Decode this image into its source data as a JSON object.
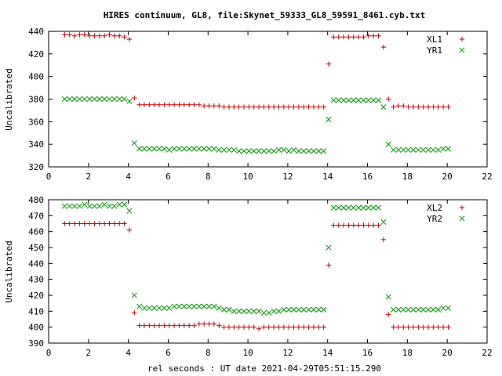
{
  "title": "HIRES continuum, GL8, file:Skynet_59333_GL8_59591_8461.cyb.txt",
  "xlabel": "rel seconds : UT date 2021-04-29T05:51:15.290",
  "colors": {
    "s1": "#cc0000",
    "s2": "#009900",
    "frame": "#000000"
  },
  "chart_data": [
    {
      "type": "scatter",
      "ylabel": "Uncalibrated",
      "xlim": [
        0,
        22
      ],
      "ylim": [
        320,
        440
      ],
      "x_ticks": [
        0,
        2,
        4,
        6,
        8,
        10,
        12,
        14,
        16,
        18,
        20,
        22
      ],
      "y_ticks": [
        320,
        340,
        360,
        380,
        400,
        420,
        440
      ],
      "legend_position": "top-right",
      "series": [
        {
          "name": "XL1",
          "marker": "plus",
          "color": "#cc0000",
          "x": [
            0.8,
            1.05,
            1.3,
            1.55,
            1.8,
            2.05,
            2.3,
            2.55,
            2.8,
            3.05,
            3.3,
            3.55,
            3.8,
            4.05,
            4.3,
            4.55,
            4.8,
            5.05,
            5.3,
            5.55,
            5.8,
            6.05,
            6.3,
            6.55,
            6.8,
            7.05,
            7.3,
            7.55,
            7.8,
            8.05,
            8.3,
            8.55,
            8.8,
            9.05,
            9.3,
            9.55,
            9.8,
            10.05,
            10.3,
            10.55,
            10.8,
            11.05,
            11.3,
            11.55,
            11.8,
            12.05,
            12.3,
            12.55,
            12.8,
            13.05,
            13.3,
            13.55,
            13.8,
            14.05,
            14.3,
            14.55,
            14.8,
            15.05,
            15.3,
            15.55,
            15.8,
            16.05,
            16.3,
            16.55,
            16.8,
            17.05,
            17.3,
            17.55,
            17.8,
            18.05,
            18.3,
            18.55,
            18.8,
            19.05,
            19.3,
            19.55,
            19.8,
            20.05
          ],
          "y": [
            437,
            437,
            436,
            437,
            437,
            436,
            436,
            436,
            436,
            437,
            436,
            436,
            435,
            433,
            381,
            375,
            375,
            375,
            375,
            375,
            375,
            375,
            375,
            375,
            375,
            375,
            375,
            375,
            374,
            374,
            374,
            374,
            373,
            373,
            373,
            373,
            373,
            373,
            373,
            373,
            373,
            373,
            373,
            373,
            373,
            373,
            373,
            373,
            373,
            373,
            373,
            373,
            373,
            411,
            435,
            435,
            435,
            435,
            435,
            435,
            435,
            436,
            436,
            436,
            426,
            380,
            373,
            374,
            374,
            373,
            373,
            373,
            373,
            373,
            373,
            373,
            373,
            373
          ]
        },
        {
          "name": "YR1",
          "marker": "cross",
          "color": "#009900",
          "x": [
            0.8,
            1.05,
            1.3,
            1.55,
            1.8,
            2.05,
            2.3,
            2.55,
            2.8,
            3.05,
            3.3,
            3.55,
            3.8,
            4.05,
            4.3,
            4.55,
            4.8,
            5.05,
            5.3,
            5.55,
            5.8,
            6.05,
            6.3,
            6.55,
            6.8,
            7.05,
            7.3,
            7.55,
            7.8,
            8.05,
            8.3,
            8.55,
            8.8,
            9.05,
            9.3,
            9.55,
            9.8,
            10.05,
            10.3,
            10.55,
            10.8,
            11.05,
            11.3,
            11.55,
            11.8,
            12.05,
            12.3,
            12.55,
            12.8,
            13.05,
            13.3,
            13.55,
            13.8,
            14.05,
            14.3,
            14.55,
            14.8,
            15.05,
            15.3,
            15.55,
            15.8,
            16.05,
            16.3,
            16.55,
            16.8,
            17.05,
            17.3,
            17.55,
            17.8,
            18.05,
            18.3,
            18.55,
            18.8,
            19.05,
            19.3,
            19.55,
            19.8,
            20.05
          ],
          "y": [
            380,
            380,
            380,
            380,
            380,
            380,
            380,
            380,
            380,
            380,
            380,
            380,
            380,
            378,
            341,
            336,
            336,
            336,
            336,
            336,
            336,
            335,
            336,
            336,
            336,
            336,
            336,
            336,
            336,
            336,
            336,
            335,
            335,
            335,
            335,
            334,
            334,
            334,
            334,
            334,
            334,
            334,
            334,
            335,
            335,
            334,
            335,
            334,
            334,
            334,
            334,
            334,
            334,
            362,
            379,
            379,
            379,
            379,
            379,
            379,
            379,
            379,
            379,
            379,
            373,
            340,
            335,
            335,
            335,
            335,
            335,
            335,
            335,
            335,
            335,
            335,
            336,
            336
          ]
        }
      ]
    },
    {
      "type": "scatter",
      "ylabel": "Uncalibrated",
      "xlim": [
        0,
        22
      ],
      "ylim": [
        390,
        480
      ],
      "x_ticks": [
        0,
        2,
        4,
        6,
        8,
        10,
        12,
        14,
        16,
        18,
        20,
        22
      ],
      "y_ticks": [
        390,
        400,
        410,
        420,
        430,
        440,
        450,
        460,
        470,
        480
      ],
      "legend_position": "top-right",
      "series": [
        {
          "name": "XL2",
          "marker": "plus",
          "color": "#cc0000",
          "x": [
            0.8,
            1.05,
            1.3,
            1.55,
            1.8,
            2.05,
            2.3,
            2.55,
            2.8,
            3.05,
            3.3,
            3.55,
            3.8,
            4.05,
            4.3,
            4.55,
            4.8,
            5.05,
            5.3,
            5.55,
            5.8,
            6.05,
            6.3,
            6.55,
            6.8,
            7.05,
            7.3,
            7.55,
            7.8,
            8.05,
            8.3,
            8.55,
            8.8,
            9.05,
            9.3,
            9.55,
            9.8,
            10.05,
            10.3,
            10.55,
            10.8,
            11.05,
            11.3,
            11.55,
            11.8,
            12.05,
            12.3,
            12.55,
            12.8,
            13.05,
            13.3,
            13.55,
            13.8,
            14.05,
            14.3,
            14.55,
            14.8,
            15.05,
            15.3,
            15.55,
            15.8,
            16.05,
            16.3,
            16.55,
            16.8,
            17.05,
            17.3,
            17.55,
            17.8,
            18.05,
            18.3,
            18.55,
            18.8,
            19.05,
            19.3,
            19.55,
            19.8,
            20.05
          ],
          "y": [
            465,
            465,
            465,
            465,
            465,
            465,
            465,
            465,
            465,
            465,
            465,
            465,
            465,
            461,
            409,
            401,
            401,
            401,
            401,
            401,
            401,
            401,
            401,
            401,
            401,
            401,
            401,
            402,
            402,
            402,
            402,
            401,
            400,
            400,
            400,
            400,
            400,
            400,
            400,
            399,
            400,
            400,
            400,
            400,
            400,
            400,
            400,
            400,
            400,
            400,
            400,
            400,
            400,
            439,
            464,
            464,
            464,
            464,
            464,
            464,
            464,
            464,
            464,
            464,
            455,
            408,
            400,
            400,
            400,
            400,
            400,
            400,
            400,
            400,
            400,
            400,
            400,
            400
          ]
        },
        {
          "name": "YR2",
          "marker": "cross",
          "color": "#009900",
          "x": [
            0.8,
            1.05,
            1.3,
            1.55,
            1.8,
            2.05,
            2.3,
            2.55,
            2.8,
            3.05,
            3.3,
            3.55,
            3.8,
            4.05,
            4.3,
            4.55,
            4.8,
            5.05,
            5.3,
            5.55,
            5.8,
            6.05,
            6.3,
            6.55,
            6.8,
            7.05,
            7.3,
            7.55,
            7.8,
            8.05,
            8.3,
            8.55,
            8.8,
            9.05,
            9.3,
            9.55,
            9.8,
            10.05,
            10.3,
            10.55,
            10.8,
            11.05,
            11.3,
            11.55,
            11.8,
            12.05,
            12.3,
            12.55,
            12.8,
            13.05,
            13.3,
            13.55,
            13.8,
            14.05,
            14.3,
            14.55,
            14.8,
            15.05,
            15.3,
            15.55,
            15.8,
            16.05,
            16.3,
            16.55,
            16.8,
            17.05,
            17.3,
            17.55,
            17.8,
            18.05,
            18.3,
            18.55,
            18.8,
            19.05,
            19.3,
            19.55,
            19.8,
            20.05
          ],
          "y": [
            476,
            476,
            476,
            476,
            477,
            476,
            476,
            476,
            477,
            476,
            476,
            477,
            477,
            473,
            420,
            413,
            412,
            412,
            412,
            412,
            412,
            412,
            413,
            413,
            413,
            413,
            413,
            413,
            413,
            413,
            413,
            412,
            411,
            411,
            410,
            410,
            410,
            410,
            410,
            410,
            409,
            409,
            410,
            410,
            411,
            411,
            411,
            411,
            411,
            411,
            411,
            411,
            411,
            450,
            475,
            475,
            475,
            475,
            475,
            475,
            475,
            475,
            475,
            475,
            466,
            419,
            411,
            411,
            411,
            411,
            411,
            411,
            411,
            411,
            411,
            411,
            412,
            412
          ]
        }
      ]
    }
  ]
}
